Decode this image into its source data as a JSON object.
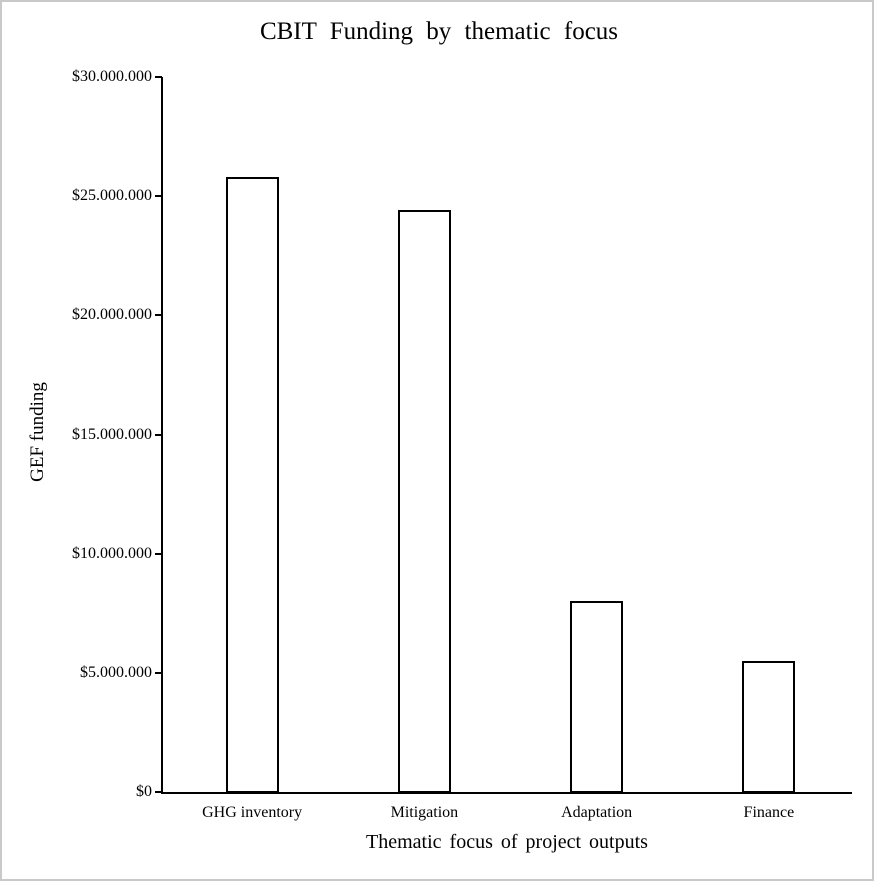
{
  "chart_data": {
    "type": "bar",
    "title": "CBIT Funding by thematic focus",
    "xlabel": "Thematic focus of project outputs",
    "ylabel": "GEF funding",
    "categories": [
      "GHG inventory",
      "Mitigation",
      "Adaptation",
      "Finance"
    ],
    "values": [
      25800000,
      24400000,
      8000000,
      5500000
    ],
    "ylim": [
      0,
      30000000
    ],
    "ytick_values": [
      0,
      5000000,
      10000000,
      15000000,
      20000000,
      25000000,
      30000000
    ],
    "ytick_labels": [
      "$0",
      "$5.000.000",
      "$10.000.000",
      "$15.000.000",
      "$20.000.000",
      "$25.000.000",
      "$30.000.000"
    ],
    "grid": false,
    "legend_position": "none",
    "bar_fill_color": "#ffffff",
    "bar_border_color": "#000000",
    "axis_color": "#000000",
    "frame_border_color": "#c9c9c9"
  }
}
